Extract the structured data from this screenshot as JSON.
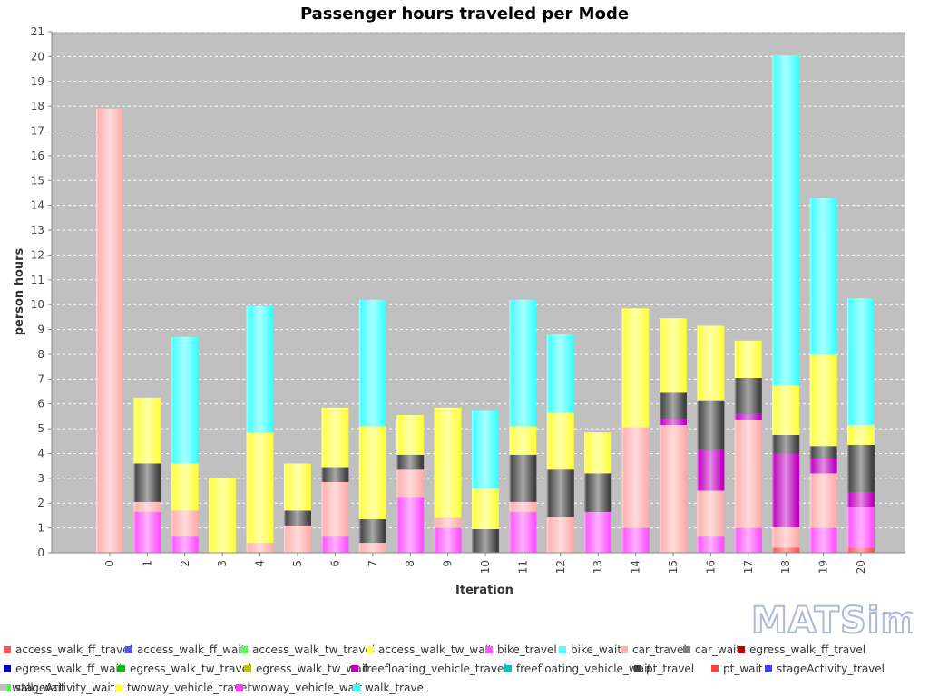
{
  "chart_data": {
    "type": "bar",
    "stacked": true,
    "title": "Passenger hours traveled per Mode",
    "xlabel": "Iteration",
    "ylabel": "person hours",
    "ylim": [
      0,
      21
    ],
    "yticks": [
      0,
      1,
      2,
      3,
      4,
      5,
      6,
      7,
      8,
      9,
      10,
      11,
      12,
      13,
      14,
      15,
      16,
      17,
      18,
      19,
      20,
      21
    ],
    "grid": true,
    "legend_position": "bottom",
    "categories": [
      "0",
      "1",
      "2",
      "3",
      "4",
      "5",
      "6",
      "7",
      "8",
      "9",
      "10",
      "11",
      "12",
      "13",
      "14",
      "15",
      "16",
      "17",
      "18",
      "19",
      "20"
    ],
    "series": [
      {
        "name": "access_walk_ff_travel",
        "color": "#ff5555",
        "values": [
          0,
          0,
          0,
          0,
          0,
          0,
          0,
          0,
          0,
          0,
          0,
          0,
          0,
          0,
          0,
          0,
          0,
          0,
          0.2,
          0,
          0.2
        ]
      },
      {
        "name": "access_walk_ff_wait",
        "color": "#5555ff",
        "values": [
          0,
          0,
          0,
          0,
          0,
          0,
          0,
          0,
          0,
          0,
          0,
          0,
          0,
          0,
          0,
          0,
          0,
          0,
          0,
          0,
          0
        ]
      },
      {
        "name": "access_walk_tw_travel",
        "color": "#55ff55",
        "values": [
          0,
          0,
          0,
          0,
          0,
          0,
          0,
          0,
          0,
          0,
          0,
          0,
          0,
          0,
          0,
          0,
          0,
          0,
          0,
          0,
          0
        ]
      },
      {
        "name": "access_walk_tw_wait",
        "color": "#ffff55",
        "values": [
          0,
          0,
          0,
          0,
          0,
          0,
          0,
          0,
          0,
          0,
          0,
          0,
          0,
          0,
          0,
          0,
          0,
          0,
          0,
          0,
          0
        ]
      },
      {
        "name": "bike_travel",
        "color": "#ff55ff",
        "values": [
          0,
          1.65,
          0.65,
          0,
          0,
          0,
          0.65,
          0,
          2.25,
          1.0,
          0,
          1.65,
          0,
          1.65,
          1.0,
          0,
          0.65,
          1.0,
          0,
          1.0,
          1.65
        ]
      },
      {
        "name": "bike_wait",
        "color": "#55ffff",
        "values": [
          0,
          0,
          0,
          0,
          0,
          0,
          0,
          0,
          0,
          0,
          0,
          0,
          0,
          0,
          0,
          0,
          0,
          0,
          0,
          0,
          0
        ]
      },
      {
        "name": "car_travel",
        "color": "#ffafaf",
        "values": [
          17.9,
          0.4,
          1.05,
          0,
          0.4,
          1.1,
          2.2,
          0.4,
          1.1,
          0.4,
          0,
          0.4,
          1.45,
          0,
          4.05,
          5.15,
          1.85,
          4.35,
          0.85,
          2.2,
          0
        ]
      },
      {
        "name": "car_wait",
        "color": "#808080",
        "values": [
          0,
          0,
          0,
          0,
          0,
          0,
          0,
          0,
          0,
          0,
          0,
          0,
          0,
          0,
          0,
          0,
          0,
          0,
          0,
          0,
          0
        ]
      },
      {
        "name": "egress_walk_ff_travel",
        "color": "#c00000",
        "values": [
          0,
          0,
          0,
          0,
          0,
          0,
          0,
          0,
          0,
          0,
          0,
          0,
          0,
          0,
          0,
          0,
          0,
          0,
          0,
          0,
          0
        ]
      },
      {
        "name": "egress_walk_ff_wait",
        "color": "#0000c0",
        "values": [
          0,
          0,
          0,
          0,
          0,
          0,
          0,
          0,
          0,
          0,
          0,
          0,
          0,
          0,
          0,
          0,
          0,
          0,
          0,
          0,
          0
        ]
      },
      {
        "name": "egress_walk_tw_travel",
        "color": "#00c000",
        "values": [
          0,
          0,
          0,
          0,
          0,
          0,
          0,
          0,
          0,
          0,
          0,
          0,
          0,
          0,
          0,
          0,
          0,
          0,
          0,
          0,
          0
        ]
      },
      {
        "name": "egress_walk_tw_wait",
        "color": "#c0c000",
        "values": [
          0,
          0,
          0,
          0,
          0,
          0,
          0,
          0,
          0,
          0,
          0,
          0,
          0,
          0,
          0,
          0,
          0,
          0,
          0,
          0,
          0
        ]
      },
      {
        "name": "freefloating_vehicle_travel",
        "color": "#c000c0",
        "values": [
          0,
          0,
          0,
          0,
          0,
          0,
          0,
          0,
          0,
          0,
          0,
          0,
          0,
          0,
          0,
          0.25,
          1.65,
          0.25,
          2.95,
          0.6,
          0.6
        ]
      },
      {
        "name": "freefloating_vehicle_wait",
        "color": "#00c0c0",
        "values": [
          0,
          0,
          0,
          0,
          0,
          0,
          0,
          0,
          0,
          0,
          0,
          0,
          0,
          0,
          0,
          0,
          0,
          0,
          0,
          0,
          0
        ]
      },
      {
        "name": "pt_travel",
        "color": "#404040",
        "values": [
          0,
          1.55,
          0,
          0,
          0,
          0.6,
          0.6,
          0.95,
          0.6,
          0,
          0.95,
          1.9,
          1.9,
          1.55,
          0,
          1.05,
          2.0,
          1.45,
          0.75,
          0.5,
          1.9
        ]
      },
      {
        "name": "pt_wait",
        "color": "#ff4040",
        "values": [
          0,
          0,
          0,
          0,
          0,
          0,
          0,
          0,
          0,
          0,
          0,
          0,
          0,
          0,
          0,
          0,
          0,
          0,
          0,
          0,
          0
        ]
      },
      {
        "name": "stageActivity_travel",
        "color": "#4040ff",
        "values": [
          0,
          0,
          0,
          0,
          0,
          0,
          0,
          0,
          0,
          0,
          0,
          0,
          0,
          0,
          0,
          0,
          0,
          0,
          0,
          0,
          0
        ]
      },
      {
        "name": "stageActivity_wait",
        "color": "#40ff40",
        "values": [
          0,
          0,
          0,
          0,
          0,
          0,
          0,
          0,
          0,
          0,
          0,
          0,
          0,
          0,
          0,
          0,
          0,
          0,
          0,
          0,
          0
        ]
      },
      {
        "name": "twoway_vehicle_travel",
        "color": "#ffff40",
        "values": [
          0,
          2.65,
          1.9,
          3.0,
          4.45,
          1.9,
          2.4,
          3.75,
          1.6,
          4.45,
          1.65,
          1.15,
          2.3,
          1.65,
          4.8,
          3.0,
          3.0,
          1.5,
          2.0,
          3.7,
          0.8
        ]
      },
      {
        "name": "twoway_vehicle_wait",
        "color": "#ff40ff",
        "values": [
          0,
          0,
          0,
          0,
          0,
          0,
          0,
          0,
          0,
          0,
          0,
          0,
          0,
          0,
          0,
          0,
          0,
          0,
          0,
          0,
          0
        ]
      },
      {
        "name": "walk_travel",
        "color": "#40ffff",
        "values": [
          0,
          0,
          5.1,
          0,
          5.1,
          0,
          0,
          5.1,
          0,
          0,
          3.15,
          5.1,
          3.15,
          0,
          0,
          0,
          0,
          0,
          13.3,
          6.3,
          5.1
        ]
      },
      {
        "name": "walk_wait",
        "color": "#c0c0c0",
        "values": [
          0,
          0,
          0,
          0,
          0,
          0,
          0,
          0,
          0,
          0,
          0,
          0,
          0,
          0,
          0,
          0,
          0,
          0,
          0,
          0,
          0
        ]
      }
    ]
  },
  "logo": {
    "text": "MATSim"
  }
}
